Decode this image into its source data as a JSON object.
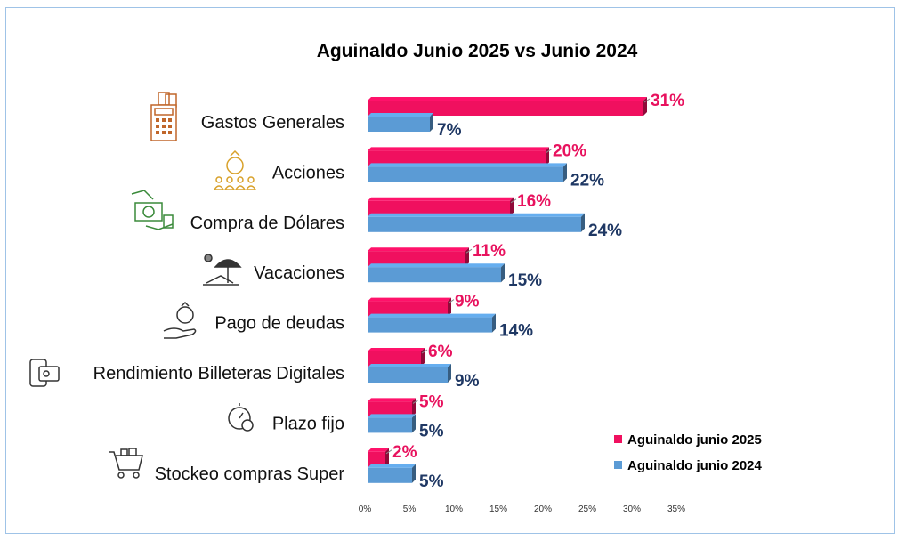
{
  "chart_data": {
    "type": "bar",
    "orientation": "horizontal",
    "title": "Aguinaldo Junio 2025 vs Junio 2024",
    "categories": [
      "Gastos Generales",
      "Acciones",
      "Compra de Dólares",
      "Vacaciones",
      "Pago de deudas",
      "Rendimiento Billeteras Digitales",
      "Plazo fijo",
      "Stockeo compras Super"
    ],
    "category_icons": [
      "calculator-icon",
      "money-bag-people-icon",
      "dollar-exchange-icon",
      "beach-umbrella-icon",
      "hand-money-bag-icon",
      "digital-wallet-icon",
      "stopwatch-dollar-icon",
      "shopping-cart-icon"
    ],
    "series": [
      {
        "name": "Aguinaldo junio 2025",
        "color": "#f0105f",
        "label_color": "#e8125e",
        "values": [
          31,
          20,
          16,
          11,
          9,
          6,
          5,
          2
        ],
        "labels": [
          "31%",
          "20%",
          "16%",
          "11%",
          "9%",
          "6%",
          "5%",
          "2%"
        ]
      },
      {
        "name": "Aguinaldo junio 2024",
        "color": "#5b9bd5",
        "label_color": "#1f3864",
        "values": [
          7,
          22,
          24,
          15,
          14,
          9,
          5,
          5
        ],
        "labels": [
          "7%",
          "22%",
          "24%",
          "15%",
          "14%",
          "9%",
          "5%",
          "5%"
        ]
      }
    ],
    "xlim": [
      0,
      35
    ],
    "xticks": [
      0,
      5,
      10,
      15,
      20,
      25,
      30,
      35
    ],
    "xtick_labels": [
      "0%",
      "5%",
      "10%",
      "15%",
      "20%",
      "25%",
      "30%",
      "35%"
    ],
    "legend_position": "bottom-right",
    "grid": false
  }
}
